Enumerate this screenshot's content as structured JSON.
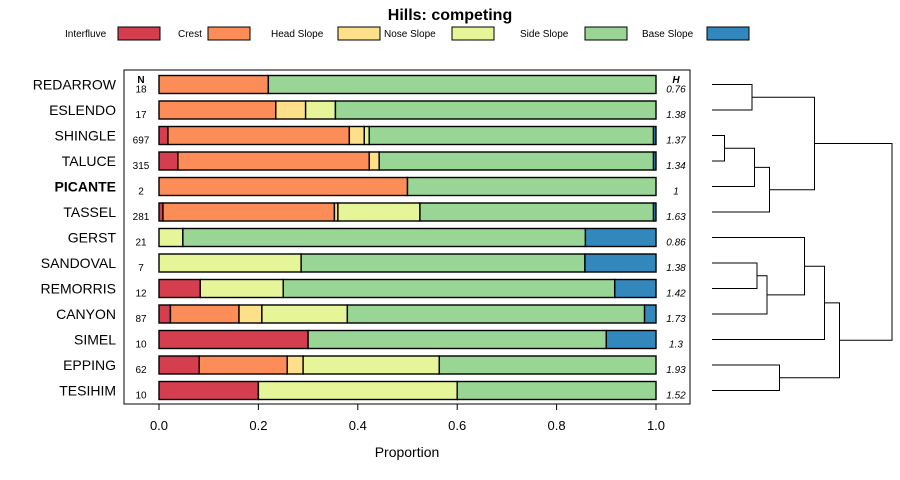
{
  "chart_data": {
    "type": "bar",
    "orientation": "horizontal-stacked",
    "title": "Hills: competing",
    "xlabel": "Proportion",
    "ylabel": "",
    "xlim": [
      0,
      1
    ],
    "x_ticks": [
      "0.0",
      "0.2",
      "0.4",
      "0.6",
      "0.8",
      "1.0"
    ],
    "x_tick_values": [
      0,
      0.2,
      0.4,
      0.6,
      0.8,
      1.0
    ],
    "n_header": "N",
    "h_header": "H",
    "legend": [
      {
        "name": "Interfluve",
        "color": "#D53E4F"
      },
      {
        "name": "Crest",
        "color": "#FC8D59"
      },
      {
        "name": "Head Slope",
        "color": "#FEE08B"
      },
      {
        "name": "Nose Slope",
        "color": "#E6F598"
      },
      {
        "name": "Side Slope",
        "color": "#99D594"
      },
      {
        "name": "Base Slope",
        "color": "#3288BD"
      }
    ],
    "series_colors": [
      "#D53E4F",
      "#FC8D59",
      "#FEE08B",
      "#E6F598",
      "#99D594",
      "#3288BD"
    ],
    "highlight": "PICANTE",
    "rows": [
      {
        "name": "REDARROW",
        "n": "18",
        "h": "0.76",
        "values": [
          0.0,
          0.22,
          0.0,
          0.0,
          0.78,
          0.0
        ]
      },
      {
        "name": "ESLENDO",
        "n": "17",
        "h": "1.38",
        "values": [
          0.0,
          0.235,
          0.06,
          0.06,
          0.645,
          0.0
        ]
      },
      {
        "name": "SHINGLE",
        "n": "697",
        "h": "1.37",
        "values": [
          0.018,
          0.365,
          0.03,
          0.01,
          0.572,
          0.005
        ]
      },
      {
        "name": "TALUCE",
        "n": "315",
        "h": "1.34",
        "values": [
          0.038,
          0.385,
          0.02,
          0.0,
          0.552,
          0.005
        ]
      },
      {
        "name": "PICANTE",
        "n": "2",
        "h": "1",
        "values": [
          0.0,
          0.5,
          0.0,
          0.0,
          0.5,
          0.0
        ]
      },
      {
        "name": "TASSEL",
        "n": "281",
        "h": "1.63",
        "values": [
          0.008,
          0.345,
          0.007,
          0.165,
          0.47,
          0.005
        ]
      },
      {
        "name": "GERST",
        "n": "21",
        "h": "0.86",
        "values": [
          0.0,
          0.0,
          0.0,
          0.048,
          0.81,
          0.142
        ]
      },
      {
        "name": "SANDOVAL",
        "n": "7",
        "h": "1.38",
        "values": [
          0.0,
          0.0,
          0.0,
          0.286,
          0.571,
          0.143
        ]
      },
      {
        "name": "REMORRIS",
        "n": "12",
        "h": "1.42",
        "values": [
          0.083,
          0.0,
          0.0,
          0.167,
          0.667,
          0.083
        ]
      },
      {
        "name": "CANYON",
        "n": "87",
        "h": "1.73",
        "values": [
          0.023,
          0.138,
          0.046,
          0.172,
          0.598,
          0.023
        ]
      },
      {
        "name": "SIMEL",
        "n": "10",
        "h": "1.3",
        "values": [
          0.3,
          0.0,
          0.0,
          0.0,
          0.6,
          0.1
        ]
      },
      {
        "name": "EPPING",
        "n": "62",
        "h": "1.93",
        "values": [
          0.081,
          0.177,
          0.032,
          0.274,
          0.436,
          0.0
        ]
      },
      {
        "name": "TESIHIM",
        "n": "10",
        "h": "1.52",
        "values": [
          0.2,
          0.0,
          0.0,
          0.4,
          0.4,
          0.0
        ]
      }
    ],
    "dendrogram": {
      "merges": [
        {
          "a": "SHINGLE",
          "b": "TALUCE",
          "height": 0.05
        },
        {
          "a": "REDARROW",
          "b": "ESLENDO",
          "height": 0.16
        },
        {
          "a": "M1",
          "b": "PICANTE",
          "height": 0.17
        },
        {
          "a": "M3",
          "b": "TASSEL",
          "height": 0.23
        },
        {
          "a": "SANDOVAL",
          "b": "REMORRIS",
          "height": 0.18
        },
        {
          "a": "M5",
          "b": "CANYON",
          "height": 0.22
        },
        {
          "a": "GERST",
          "b": "M6",
          "height": 0.37
        },
        {
          "a": "EPPING",
          "b": "TESIHIM",
          "height": 0.27
        },
        {
          "a": "M7",
          "b": "SIMEL",
          "height": 0.45
        },
        {
          "a": "M9",
          "b": "M8",
          "height": 0.51
        },
        {
          "a": "M2",
          "b": "M4",
          "height": 0.41
        },
        {
          "a": "M11",
          "b": "M10",
          "height": 0.72
        }
      ]
    }
  }
}
